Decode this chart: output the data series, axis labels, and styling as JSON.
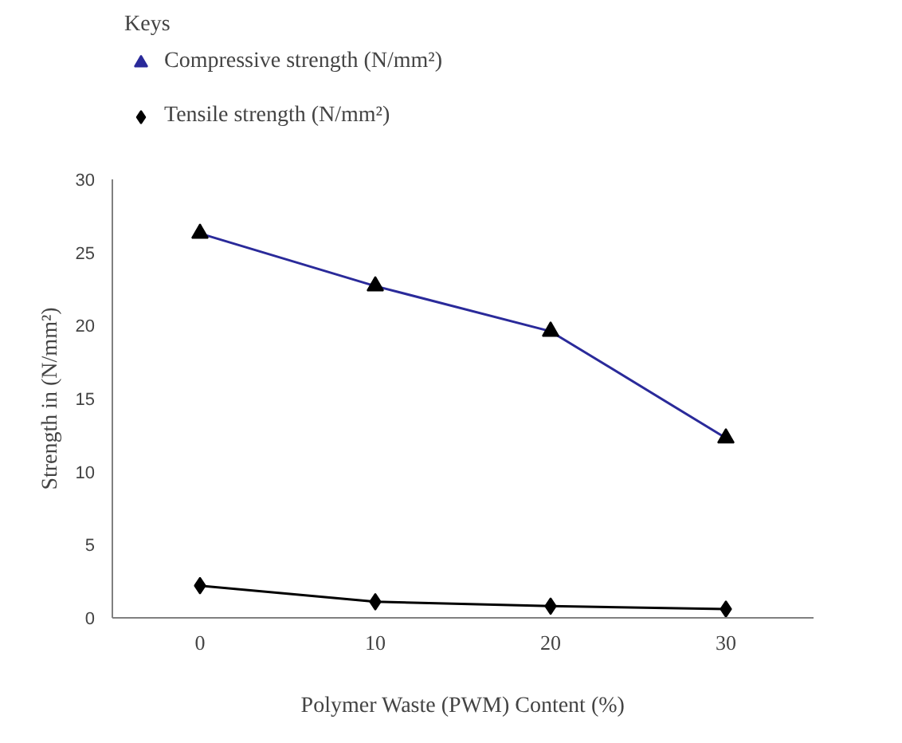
{
  "chart_data": {
    "type": "line",
    "legend_title": "Keys",
    "xlabel": "Polymer Waste (PWM) Content (%)",
    "ylabel": "Strength in (N/mm²)",
    "categories": [
      "0",
      "10",
      "20",
      "30"
    ],
    "series": [
      {
        "name": "Compressive strength (N/mm²)",
        "color": "#2a2a9a",
        "marker": "triangle",
        "values": [
          26.3,
          22.7,
          19.6,
          12.3
        ]
      },
      {
        "name": "Tensile strength (N/mm²)",
        "color": "#000000",
        "marker": "diamond",
        "values": [
          2.2,
          1.1,
          0.8,
          0.6
        ]
      }
    ],
    "ylim": [
      0,
      30
    ],
    "yticks": [
      0,
      5,
      10,
      15,
      20,
      25,
      30
    ],
    "grid": false,
    "legend": "top left",
    "line_style": "solid"
  }
}
